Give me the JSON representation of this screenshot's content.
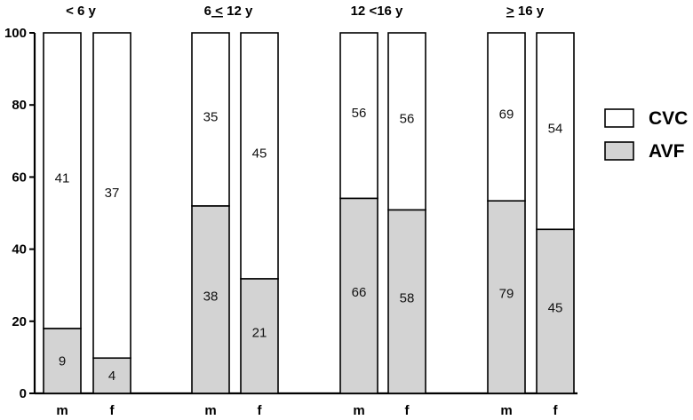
{
  "chart_data": {
    "type": "bar",
    "stacked": true,
    "ylim": [
      0,
      100
    ],
    "yticks": [
      0,
      20,
      40,
      60,
      80,
      100
    ],
    "groups": [
      {
        "label_parts": [
          "< 6 y"
        ],
        "underlined": []
      },
      {
        "label_parts": [
          "6",
          "<",
          "12",
          "y"
        ],
        "underlined": [
          1
        ]
      },
      {
        "label_parts": [
          "12",
          "<16 y"
        ],
        "underlined": []
      },
      {
        "label_parts": [
          ">",
          "16 y"
        ],
        "underlined": [
          0
        ]
      }
    ],
    "categories": [
      "m",
      "f",
      "m",
      "f",
      "m",
      "f",
      "m",
      "f"
    ],
    "series": [
      {
        "name": "AVF",
        "color": "#d3d3d3",
        "percent": [
          18,
          9.8,
          52,
          31.8,
          54.1,
          50.9,
          53.4,
          45.5
        ],
        "labels": [
          "9",
          "4",
          "38",
          "21",
          "66",
          "58",
          "79",
          "45"
        ]
      },
      {
        "name": "CVC",
        "color": "#ffffff",
        "percent": [
          82,
          90.2,
          48,
          68.2,
          45.9,
          49.1,
          46.6,
          54.5
        ],
        "labels": [
          "41",
          "37",
          "35",
          "45",
          "56",
          "56",
          "69",
          "54"
        ]
      }
    ],
    "legend": {
      "position": "right",
      "order": [
        "CVC",
        "AVF"
      ]
    }
  }
}
